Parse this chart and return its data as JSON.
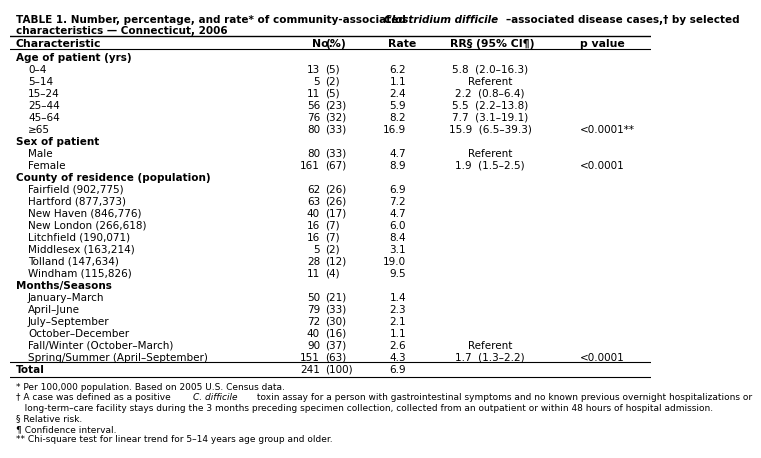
{
  "bg_color": "#ffffff",
  "text_color": "#000000",
  "title_fs": 7.5,
  "header_fs": 7.8,
  "body_fs": 7.5,
  "foot_fs": 6.5,
  "rows": [
    {
      "label": "Age of patient (yrs)",
      "indent": false,
      "bold": true,
      "no": "",
      "pct": "",
      "rate": "",
      "rr": "",
      "pval": ""
    },
    {
      "label": "0–4",
      "indent": true,
      "bold": false,
      "no": "13",
      "pct": "(5)",
      "rate": "6.2",
      "rr": "5.8  (2.0–16.3)",
      "pval": ""
    },
    {
      "label": "5–14",
      "indent": true,
      "bold": false,
      "no": "5",
      "pct": "(2)",
      "rate": "1.1",
      "rr": "Referent",
      "pval": ""
    },
    {
      "label": "15–24",
      "indent": true,
      "bold": false,
      "no": "11",
      "pct": "(5)",
      "rate": "2.4",
      "rr": "2.2  (0.8–6.4)",
      "pval": ""
    },
    {
      "label": "25–44",
      "indent": true,
      "bold": false,
      "no": "56",
      "pct": "(23)",
      "rate": "5.9",
      "rr": "5.5  (2.2–13.8)",
      "pval": ""
    },
    {
      "label": "45–64",
      "indent": true,
      "bold": false,
      "no": "76",
      "pct": "(32)",
      "rate": "8.2",
      "rr": "7.7  (3.1–19.1)",
      "pval": ""
    },
    {
      "label": "≥65",
      "indent": true,
      "bold": false,
      "no": "80",
      "pct": "(33)",
      "rate": "16.9",
      "rr": "15.9  (6.5–39.3)",
      "pval": "<0.0001**"
    },
    {
      "label": "Sex of patient",
      "indent": false,
      "bold": true,
      "no": "",
      "pct": "",
      "rate": "",
      "rr": "",
      "pval": ""
    },
    {
      "label": "Male",
      "indent": true,
      "bold": false,
      "no": "80",
      "pct": "(33)",
      "rate": "4.7",
      "rr": "Referent",
      "pval": ""
    },
    {
      "label": "Female",
      "indent": true,
      "bold": false,
      "no": "161",
      "pct": "(67)",
      "rate": "8.9",
      "rr": "1.9  (1.5–2.5)",
      "pval": "<0.0001"
    },
    {
      "label": "County of residence (population)",
      "indent": false,
      "bold": true,
      "no": "",
      "pct": "",
      "rate": "",
      "rr": "",
      "pval": ""
    },
    {
      "label": "Fairfield (902,775)",
      "indent": true,
      "bold": false,
      "no": "62",
      "pct": "(26)",
      "rate": "6.9",
      "rr": "",
      "pval": ""
    },
    {
      "label": "Hartford (877,373)",
      "indent": true,
      "bold": false,
      "no": "63",
      "pct": "(26)",
      "rate": "7.2",
      "rr": "",
      "pval": ""
    },
    {
      "label": "New Haven (846,776)",
      "indent": true,
      "bold": false,
      "no": "40",
      "pct": "(17)",
      "rate": "4.7",
      "rr": "",
      "pval": ""
    },
    {
      "label": "New London (266,618)",
      "indent": true,
      "bold": false,
      "no": "16",
      "pct": "(7)",
      "rate": "6.0",
      "rr": "",
      "pval": ""
    },
    {
      "label": "Litchfield (190,071)",
      "indent": true,
      "bold": false,
      "no": "16",
      "pct": "(7)",
      "rate": "8.4",
      "rr": "",
      "pval": ""
    },
    {
      "label": "Middlesex (163,214)",
      "indent": true,
      "bold": false,
      "no": "5",
      "pct": "(2)",
      "rate": "3.1",
      "rr": "",
      "pval": ""
    },
    {
      "label": "Tolland (147,634)",
      "indent": true,
      "bold": false,
      "no": "28",
      "pct": "(12)",
      "rate": "19.0",
      "rr": "",
      "pval": ""
    },
    {
      "label": "Windham (115,826)",
      "indent": true,
      "bold": false,
      "no": "11",
      "pct": "(4)",
      "rate": "9.5",
      "rr": "",
      "pval": ""
    },
    {
      "label": "Months/Seasons",
      "indent": false,
      "bold": true,
      "no": "",
      "pct": "",
      "rate": "",
      "rr": "",
      "pval": ""
    },
    {
      "label": "January–March",
      "indent": true,
      "bold": false,
      "no": "50",
      "pct": "(21)",
      "rate": "1.4",
      "rr": "",
      "pval": ""
    },
    {
      "label": "April–June",
      "indent": true,
      "bold": false,
      "no": "79",
      "pct": "(33)",
      "rate": "2.3",
      "rr": "",
      "pval": ""
    },
    {
      "label": "July–September",
      "indent": true,
      "bold": false,
      "no": "72",
      "pct": "(30)",
      "rate": "2.1",
      "rr": "",
      "pval": ""
    },
    {
      "label": "October–December",
      "indent": true,
      "bold": false,
      "no": "40",
      "pct": "(16)",
      "rate": "1.1",
      "rr": "",
      "pval": ""
    },
    {
      "label": "Fall/Winter (October–March)",
      "indent": true,
      "bold": false,
      "no": "90",
      "pct": "(37)",
      "rate": "2.6",
      "rr": "Referent",
      "pval": ""
    },
    {
      "label": "Spring/Summer (April–September)",
      "indent": true,
      "bold": false,
      "no": "151",
      "pct": "(63)",
      "rate": "4.3",
      "rr": "1.7  (1.3–2.2)",
      "pval": "<0.0001"
    },
    {
      "label": "Total",
      "indent": false,
      "bold": true,
      "no": "241",
      "pct": "(100)",
      "rate": "6.9",
      "rr": "",
      "pval": ""
    }
  ],
  "footnotes": [
    {
      "text": "* Per 100,000 population. Based on 2005 U.S. Census data.",
      "italic_word": ""
    },
    {
      "text": "† A case was defined as a positive C. difficile toxin assay for a person with gastrointestinal symptoms and no known previous overnight hospitalizations or",
      "italic_word": "C. difficile"
    },
    {
      "text": "   long-term–care facility stays during the 3 months preceding specimen collection, collected from an outpatient or within 48 hours of hospital admission.",
      "italic_word": ""
    },
    {
      "text": "§ Relative risk.",
      "italic_word": ""
    },
    {
      "text": "¶ Confidence interval.",
      "italic_word": ""
    },
    {
      "text": "** Chi-square test for linear trend for 5–14 years age group and older.",
      "italic_word": ""
    }
  ]
}
